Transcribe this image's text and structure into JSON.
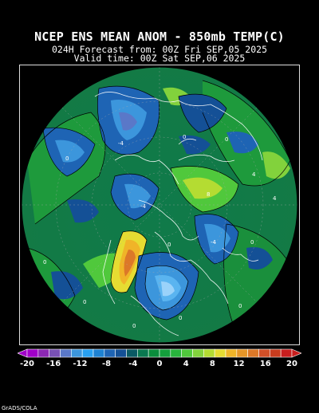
{
  "header": {
    "title": "NCEP ENS MEAN ANOM - 850mb TEMP(C)",
    "forecast_line": "024H Forecast from: 00Z Fri SEP,05 2025",
    "valid_line": "Valid time: 00Z Sat SEP,06 2025"
  },
  "colorbar": {
    "labels": [
      "-20",
      "-16",
      "-12",
      "-8",
      "-4",
      "0",
      "4",
      "8",
      "12",
      "16",
      "20"
    ],
    "colors": [
      "#a000c8",
      "#8c28b4",
      "#7850b4",
      "#5a78c8",
      "#3c96dc",
      "#28a0f0",
      "#1e82d2",
      "#1e64b4",
      "#145096",
      "#0a5a64",
      "#0a7850",
      "#0a8c3c",
      "#14a03c",
      "#28b43c",
      "#50c83c",
      "#82d23c",
      "#b4dc32",
      "#e6dc32",
      "#f0b428",
      "#e69628",
      "#dc7828",
      "#d25028",
      "#c83c1e",
      "#c81e1e"
    ]
  },
  "credit": "GrADS/COLA",
  "map": {
    "contour_labels": [
      "-4",
      "0",
      "0",
      "4",
      "-4",
      "0",
      "0",
      "0",
      "-4",
      "0",
      "8",
      "0",
      "4",
      "0",
      "0",
      "0"
    ]
  }
}
